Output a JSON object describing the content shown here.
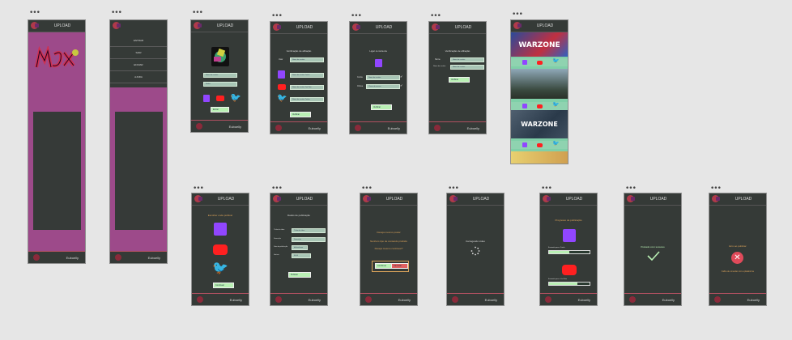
{
  "header_title": "UPLOAD",
  "brand": "Euboelly",
  "dots_glyph": "•••",
  "menu": {
    "items": [
      "ENTRAR",
      "SAIR",
      "ENVIAR",
      "AJUDA"
    ]
  },
  "login": {
    "field1": "Nome de usuário",
    "field2": "Senha",
    "button": "Entrar"
  },
  "verify": {
    "title": "Verificação de afiliação",
    "user_label": "Usar",
    "user_value": "Nome de usuário",
    "twitch_value": "Nome de usuário Twitch",
    "youtube_value": "Nome de usuário YouTube",
    "twitter_value": "Nome de usuário Twitter",
    "button": "Verificar"
  },
  "twitch_verify": {
    "title": "Ligar à conta da",
    "label1": "Conta",
    "label2": "Chave",
    "value1": "Nome de usuário",
    "value2": "Chave de acesso",
    "button": "Verificar"
  },
  "verify2": {
    "title": "Verificação de afiliação",
    "label1": "Nome",
    "label2": "Nome de usuário",
    "value1": "Nome de usuário",
    "value2": "Nome de usuário",
    "button": "Verificar"
  },
  "feed": {
    "banner1": "WARZONE",
    "banner2": "WARZONE"
  },
  "select": {
    "title": "Escolher onde publicar",
    "button": "Continuar"
  },
  "publish": {
    "title": "Dados de publicação",
    "label1": "Título do vídeo",
    "label2": "Descrição",
    "label3": "Data de publicação",
    "label4": "Horário",
    "value1": "Título do vídeo",
    "value2": "Descrição",
    "value3": "dd/mm/aaaa",
    "value4": "00:00",
    "button": "Publicar"
  },
  "confirm": {
    "line1": "Deseja mesmo postar",
    "line2": "Nenhum tipo de conteúdo proibido",
    "line3": "Deseja mesmo continuar?",
    "yes": "Confirmar",
    "no": "Cancelar"
  },
  "loading": {
    "text": "Carregando vídeo"
  },
  "progress": {
    "title": "Progresso de publicação",
    "twitch_label": "Enviando para a Twitch",
    "youtube_label": "Enviando para o YouTube",
    "twitch_progress": 0.5,
    "youtube_progress": 0.7
  },
  "success": {
    "text": "Postado com sucesso"
  },
  "error": {
    "title": "Erro ao publicar",
    "detail": "Falha de conexão com a plataforma"
  }
}
